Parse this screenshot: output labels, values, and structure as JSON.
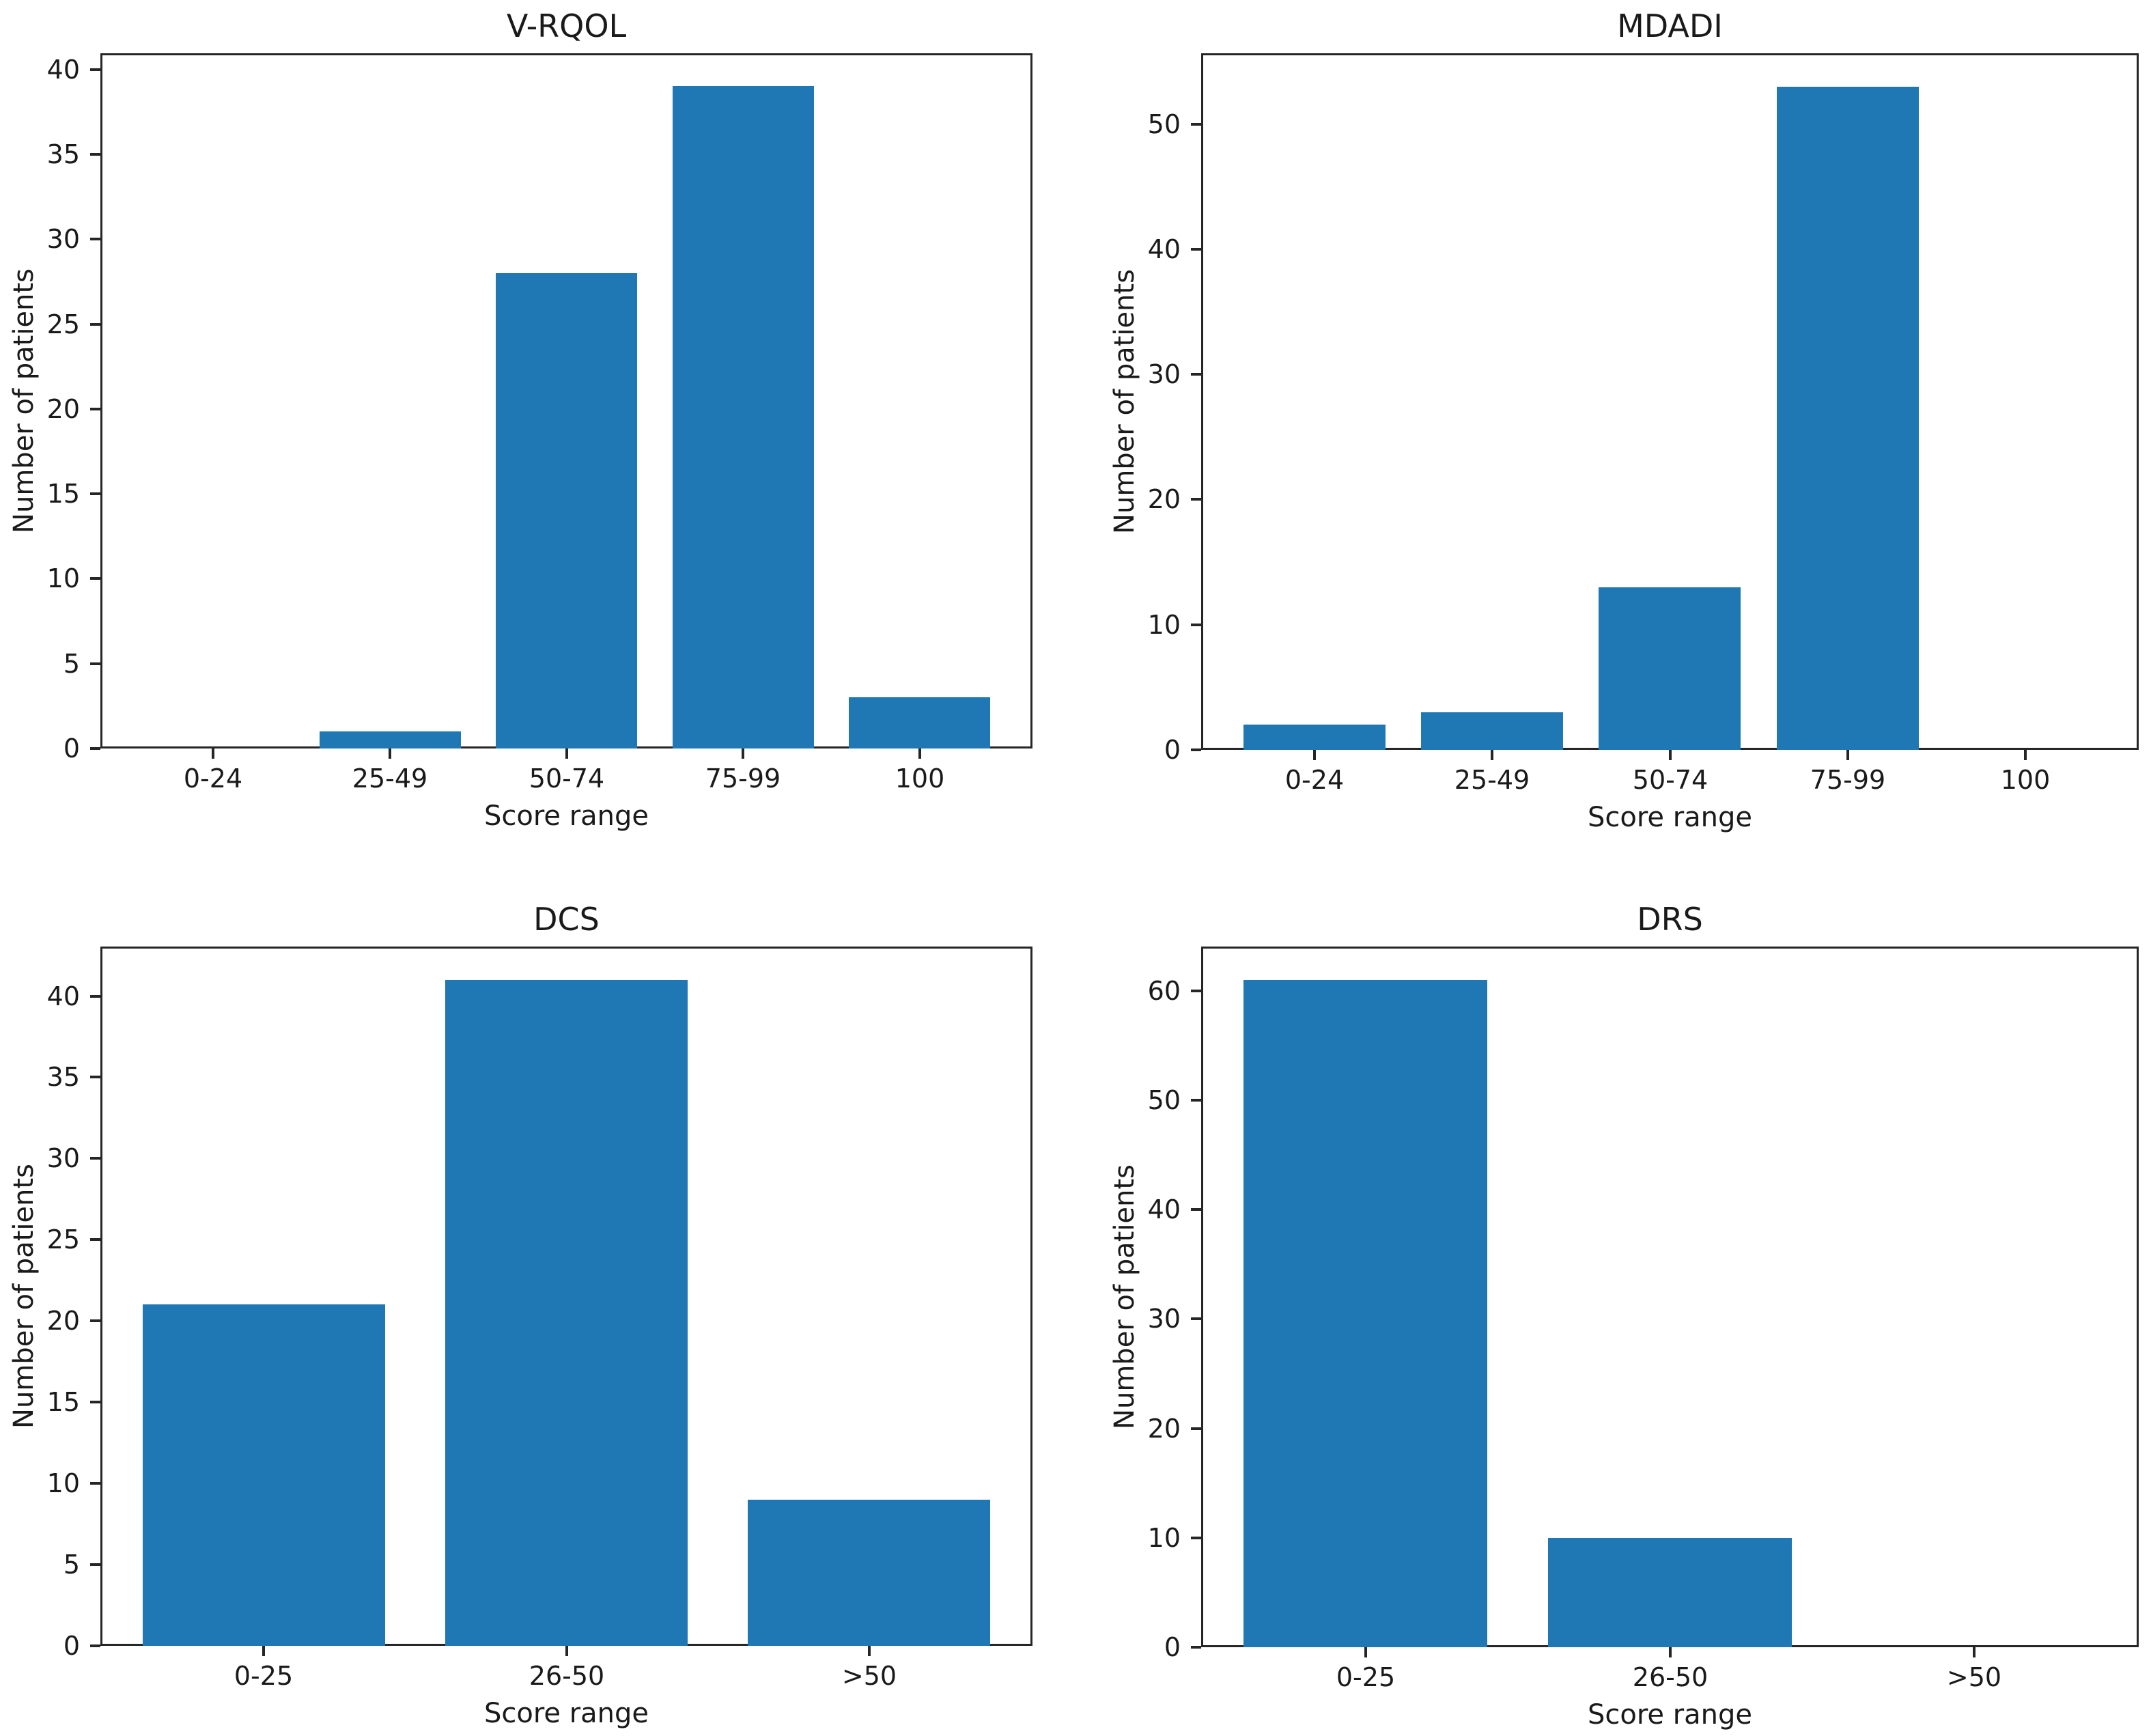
{
  "figure": {
    "background": "#ffffff",
    "bar_color": "#1f77b4",
    "text_color": "#1a1a1a",
    "spine_color": "#262626"
  },
  "chart_data": [
    {
      "type": "bar",
      "title": "V-RQOL",
      "xlabel": "Score range",
      "ylabel": "Number of patients",
      "categories": [
        "0-24",
        "25-49",
        "50-74",
        "75-99",
        "100"
      ],
      "values": [
        0,
        1,
        28,
        39,
        3
      ],
      "yticks": [
        0,
        5,
        10,
        15,
        20,
        25,
        30,
        35,
        40
      ],
      "ylim": [
        0,
        40.95
      ],
      "grid": false,
      "legend": null
    },
    {
      "type": "bar",
      "title": "MDADI",
      "xlabel": "Score range",
      "ylabel": "Number of patients",
      "categories": [
        "0-24",
        "25-49",
        "50-74",
        "75-99",
        "100"
      ],
      "values": [
        2,
        3,
        13,
        53,
        0
      ],
      "yticks": [
        0,
        10,
        20,
        30,
        40,
        50
      ],
      "ylim": [
        0,
        55.65
      ],
      "grid": false,
      "legend": null
    },
    {
      "type": "bar",
      "title": "DCS",
      "xlabel": "Score range",
      "ylabel": "Number of patients",
      "categories": [
        "0-25",
        "26-50",
        ">50"
      ],
      "values": [
        21,
        41,
        9
      ],
      "yticks": [
        0,
        5,
        10,
        15,
        20,
        25,
        30,
        35,
        40
      ],
      "ylim": [
        0,
        43.05
      ],
      "grid": false,
      "legend": null
    },
    {
      "type": "bar",
      "title": "DRS",
      "xlabel": "Score range",
      "ylabel": "Number of patients",
      "categories": [
        "0-25",
        "26-50",
        ">50"
      ],
      "values": [
        61,
        10,
        0
      ],
      "yticks": [
        0,
        10,
        20,
        30,
        40,
        50,
        60
      ],
      "ylim": [
        0,
        64.05
      ],
      "grid": false,
      "legend": null
    }
  ]
}
